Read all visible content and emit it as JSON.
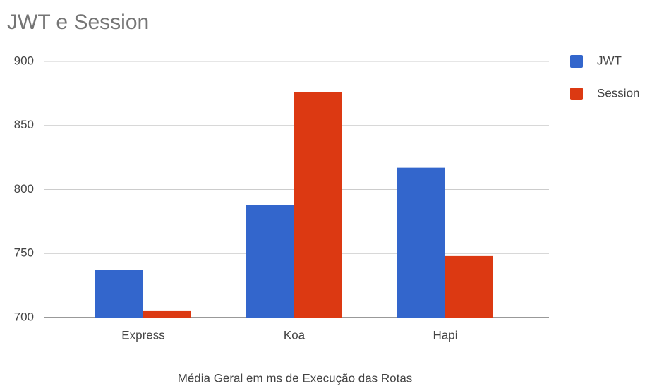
{
  "chart_data": {
    "type": "bar",
    "title": "JWT e Session",
    "xlabel": "Média Geral em ms de Execução das Rotas",
    "categories": [
      "Express",
      "Koa",
      "Hapi"
    ],
    "series": [
      {
        "name": "JWT",
        "color": "#3366cc",
        "values": [
          737,
          788,
          817
        ]
      },
      {
        "name": "Session",
        "color": "#dc3912",
        "values": [
          705,
          876,
          748
        ]
      }
    ],
    "ylim": [
      700,
      900
    ],
    "yticks": [
      700,
      750,
      800,
      850,
      900
    ],
    "grid": true,
    "legend": "right"
  }
}
